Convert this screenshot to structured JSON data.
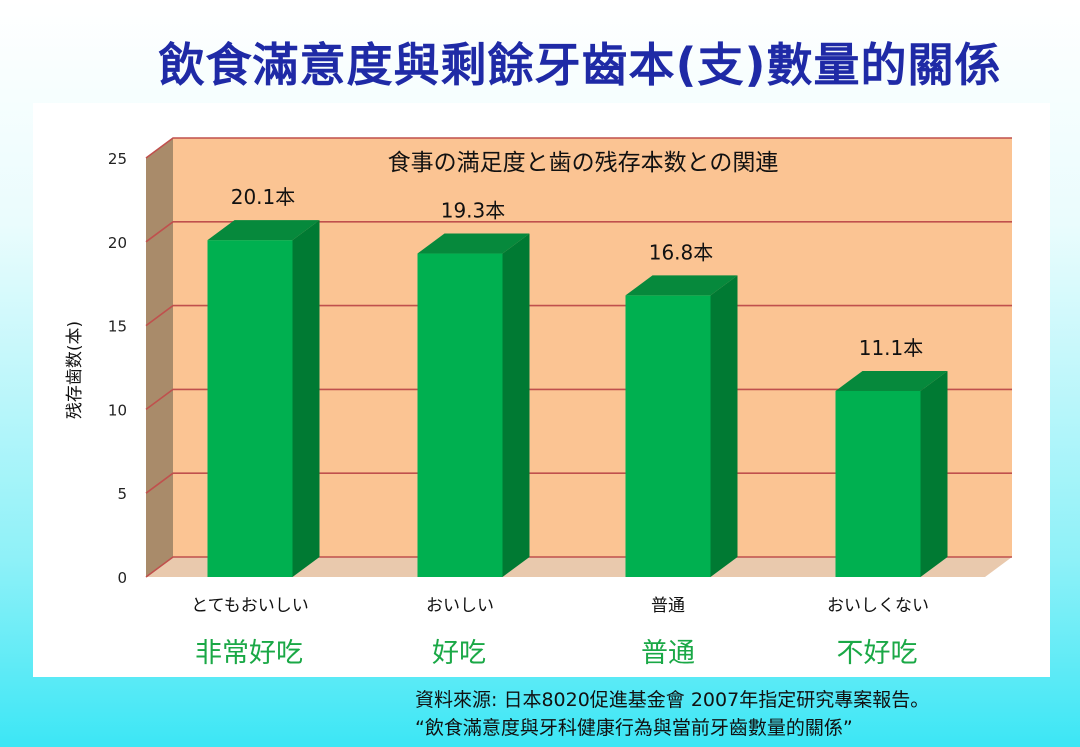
{
  "slide_title": "飲食滿意度與剩餘牙齒本(支)數量的關係",
  "chinese_labels": [
    "非常好吃",
    "好吃",
    "普通",
    "不好吃"
  ],
  "source": {
    "line1": "資料來源: 日本8020促進基金會   2007年指定研究專案報告。",
    "line2": "“飲食滿意度與牙科健康行為與當前牙齒數量的關係”"
  },
  "colors": {
    "title": "#1f2aa6",
    "bar_front": "#00b050",
    "bar_dark": "#007a33",
    "plot_bg": "#fbc493",
    "cn_label": "#1aa846"
  },
  "chart_data": {
    "type": "bar",
    "title": "食事の満足度と歯の残存本数との関連",
    "ylabel": "残存歯数(本)",
    "xlabel": "",
    "categories": [
      "とてもおいしい",
      "おいしい",
      "普通",
      "おいしくない"
    ],
    "values": [
      20.1,
      19.3,
      16.8,
      11.1
    ],
    "data_labels": [
      "20.1本",
      "19.3本",
      "16.8本",
      "11.1本"
    ],
    "ylim": [
      0,
      25
    ],
    "yticks": [
      "0",
      "5",
      "10",
      "15",
      "20",
      "25"
    ],
    "grid": true,
    "legend": "none",
    "style": "3d"
  }
}
